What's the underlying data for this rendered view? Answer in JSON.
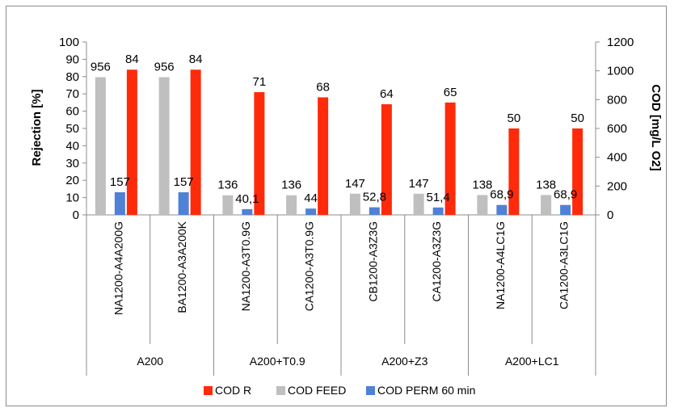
{
  "chart_data": {
    "type": "bar",
    "ylabel": "Rejection [%]",
    "y2label": "COD [mg/L O2]",
    "ylim": [
      0,
      100
    ],
    "y2lim": [
      0,
      1200
    ],
    "yticks": [
      "0",
      "10",
      "20",
      "30",
      "40",
      "50",
      "60",
      "70",
      "80",
      "90",
      "100"
    ],
    "y2ticks": [
      "0",
      "200",
      "400",
      "600",
      "800",
      "1000",
      "1200"
    ],
    "categories": [
      "NA1200-A4A200G",
      "BA1200-A3A200K",
      "NA1200-A3T0.9G",
      "CA1200-A3T0.9G",
      "CB1200-A3Z3G",
      "CA1200-A3Z3G",
      "NA1200-A4LC1G",
      "CA1200-A3LC1G"
    ],
    "groups": [
      {
        "label": "A200",
        "span": 2
      },
      {
        "label": "A200+T0.9",
        "span": 2
      },
      {
        "label": "A200+Z3",
        "span": 2
      },
      {
        "label": "A200+LC1",
        "span": 2
      }
    ],
    "series": [
      {
        "name": "COD FEED",
        "axis": "right",
        "color": "#bfbfbf",
        "values": [
          956,
          956,
          136,
          136,
          147,
          147,
          138,
          138
        ],
        "labels": [
          "956",
          "956",
          "136",
          "136",
          "147",
          "147",
          "138",
          "138"
        ]
      },
      {
        "name": "COD PERM 60 min",
        "axis": "right",
        "color": "#4f81d6",
        "values": [
          157,
          157,
          40.1,
          44,
          52.8,
          51.4,
          68.9,
          68.9
        ],
        "labels": [
          "157",
          "157",
          "40,1",
          "44",
          "52,8",
          "51,4",
          "68,9",
          "68,9"
        ]
      },
      {
        "name": "COD R",
        "axis": "left",
        "color": "#ff2a0a",
        "values": [
          84,
          84,
          71,
          68,
          64,
          65,
          50,
          50
        ],
        "labels": [
          "84",
          "84",
          "71",
          "68",
          "64",
          "65",
          "50",
          "50"
        ]
      }
    ],
    "legend_order": [
      "COD R",
      "COD FEED",
      "COD PERM 60 min"
    ],
    "legend_position": "bottom",
    "grid": false
  }
}
